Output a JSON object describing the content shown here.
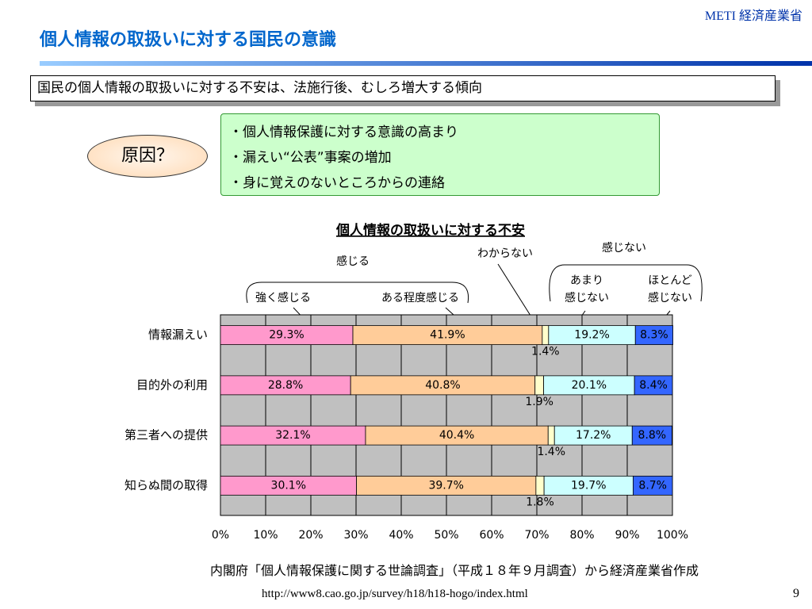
{
  "header": {
    "title": "個人情報の取扱いに対する国民の意識",
    "logo": "METI 経済産業省"
  },
  "summary": "国民の個人情報の取扱いに対する不安は、法施行後、むしろ増大する傾向",
  "cause": {
    "label": "原因？",
    "items": [
      "・個人情報保護に対する意識の高まり",
      "・漏えい“公表”事案の増加",
      "・身に覚えのないところからの連絡"
    ]
  },
  "chart_data": {
    "type": "bar",
    "orientation": "horizontal",
    "stacked": true,
    "title": "個人情報の取扱いに対する不安",
    "annotations": [
      "感じる",
      "感じない"
    ],
    "categories": [
      "情報漏えい",
      "目的外の利用",
      "第三者への提供",
      "知らぬ間の取得"
    ],
    "series": [
      {
        "name": "強く感じる",
        "color": "#ff99cc",
        "values": [
          29.3,
          28.8,
          32.1,
          30.1
        ],
        "value_labels": [
          "29.3%",
          "28.8%",
          "32.1%",
          "30.1%"
        ]
      },
      {
        "name": "ある程度感じる",
        "color": "#ffcc99",
        "values": [
          41.9,
          40.8,
          40.4,
          39.7
        ],
        "value_labels": [
          "41.9%",
          "40.8%",
          "40.4%",
          "39.7%"
        ]
      },
      {
        "name": "わからない",
        "color": "#ffffcc",
        "values": [
          1.4,
          1.9,
          1.4,
          1.8
        ],
        "value_labels": [
          "1.4%",
          "1.9%",
          "1.4%",
          "1.8%"
        ]
      },
      {
        "name": "あまり\n感じない",
        "color": "#ccffff",
        "values": [
          19.2,
          20.1,
          17.2,
          19.7
        ],
        "value_labels": [
          "19.2%",
          "20.1%",
          "17.2%",
          "19.7%"
        ]
      },
      {
        "name": "ほとんど\n感じない",
        "color": "#3366ff",
        "values": [
          8.3,
          8.4,
          8.8,
          8.7
        ],
        "value_labels": [
          "8.3%",
          "8.4%",
          "8.8%",
          "8.7%"
        ]
      }
    ],
    "xlim": [
      0,
      100
    ],
    "xticks": [
      {
        "value": 0,
        "label": "0%"
      },
      {
        "value": 10,
        "label": "10%"
      },
      {
        "value": 20,
        "label": "20%"
      },
      {
        "value": 30,
        "label": "30%"
      },
      {
        "value": 40,
        "label": "40%"
      },
      {
        "value": 50,
        "label": "50%"
      },
      {
        "value": 60,
        "label": "60%"
      },
      {
        "value": 70,
        "label": "70%"
      },
      {
        "value": 80,
        "label": "80%"
      },
      {
        "value": 90,
        "label": "90%"
      },
      {
        "value": 100,
        "label": "100%"
      }
    ],
    "grid": true
  },
  "source": "内閣府「個人情報保護に関する世論調査」（平成１８年９月調査）から経済産業省作成",
  "url": "http://www8.cao.go.jp/survey/h18/h18-hogo/index.html",
  "page_number": "9"
}
